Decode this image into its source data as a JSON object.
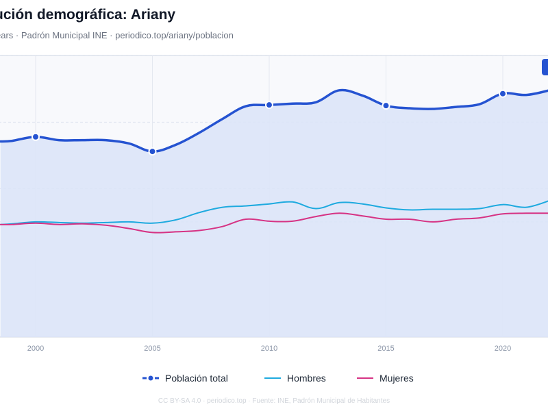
{
  "header": {
    "title": "ución demográfica: Ariany",
    "subtitle": "ears · Padrón Municipal INE · periodico.top/ariany/poblacion"
  },
  "footer": {
    "text": "CC BY-SA 4.0 · periodico.top · Fuente: INE, Padrón Municipal de Habitantes"
  },
  "colors": {
    "total": "#2553d1",
    "hombres": "#1eaadf",
    "mujeres": "#d63384",
    "area": "#dbe4f8"
  },
  "chart_data": {
    "type": "line",
    "x_ticks": [
      "2000",
      "2005",
      "2010",
      "2015",
      "2020"
    ],
    "xlim": [
      1998.5,
      2022
    ],
    "ylim": [
      770,
      1070
    ],
    "grid": true,
    "legend": "bottom-center",
    "series": [
      {
        "name": "Población total",
        "key": "total",
        "style": "line-markers",
        "x": [
          1998.5,
          1999,
          2000,
          2001,
          2002,
          2003,
          2004,
          2005,
          2006,
          2007,
          2008,
          2009,
          2010,
          2011,
          2012,
          2013,
          2014,
          2015,
          2016,
          2017,
          2018,
          2019,
          2020,
          2021,
          2022
        ],
        "values": [
          921,
          922,
          928,
          923,
          923,
          923,
          918,
          906,
          916,
          934,
          955,
          974,
          976,
          978,
          980,
          998,
          990,
          975,
          971,
          970,
          973,
          977,
          993,
          991,
          998
        ],
        "markers": [
          2000,
          2005,
          2010,
          2015,
          2020
        ]
      },
      {
        "name": "Hombres",
        "key": "hombres",
        "style": "line",
        "x": [
          1998.5,
          1999,
          2000,
          2001,
          2002,
          2003,
          2004,
          2005,
          2006,
          2007,
          2008,
          2009,
          2010,
          2011,
          2012,
          2013,
          2014,
          2015,
          2016,
          2017,
          2018,
          2019,
          2020,
          2021,
          2022
        ],
        "values": [
          796,
          797,
          800,
          799,
          798,
          799,
          800,
          798,
          803,
          814,
          822,
          824,
          827,
          830,
          820,
          829,
          827,
          821,
          818,
          819,
          819,
          820,
          826,
          822,
          832
        ],
        "markers": []
      },
      {
        "name": "Mujeres",
        "key": "mujeres",
        "style": "line",
        "x": [
          1998.5,
          1999,
          2000,
          2001,
          2002,
          2003,
          2004,
          2005,
          2006,
          2007,
          2008,
          2009,
          2010,
          2011,
          2012,
          2013,
          2014,
          2015,
          2016,
          2017,
          2018,
          2019,
          2020,
          2021,
          2022
        ],
        "values": [
          796,
          796,
          798,
          796,
          797,
          795,
          790,
          784,
          785,
          787,
          793,
          804,
          801,
          801,
          808,
          813,
          809,
          804,
          804,
          800,
          804,
          806,
          812,
          813,
          813
        ],
        "markers": []
      }
    ]
  }
}
